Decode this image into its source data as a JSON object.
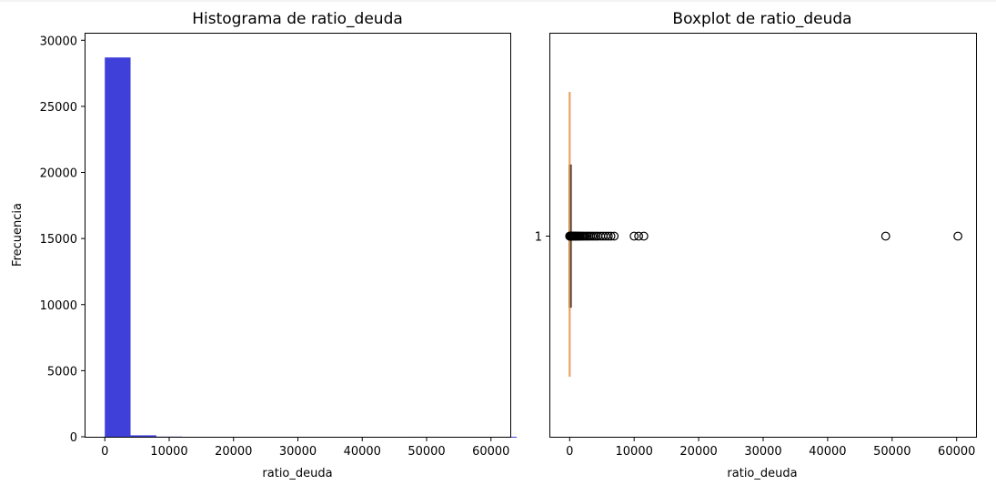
{
  "chart_data": [
    {
      "type": "histogram",
      "title": "Histograma de ratio_deuda",
      "xlabel": "ratio_deuda",
      "ylabel": "Frecuencia",
      "xlim": [
        -3000,
        63000
      ],
      "ylim": [
        0,
        30500
      ],
      "xticks": [
        0,
        10000,
        20000,
        30000,
        40000,
        50000,
        60000
      ],
      "xtick_labels": [
        "0",
        "10000",
        "20000",
        "30000",
        "40000",
        "50000",
        "60000"
      ],
      "yticks": [
        0,
        5000,
        10000,
        15000,
        20000,
        25000,
        30000
      ],
      "ytick_labels": [
        "0",
        "5000",
        "10000",
        "15000",
        "20000",
        "25000",
        "30000"
      ],
      "bar_color": "#3f3fd9",
      "bins": [
        {
          "x0": 0,
          "x1": 4000,
          "count": 28700
        },
        {
          "x0": 4000,
          "x1": 8000,
          "count": 110
        },
        {
          "x0": 8000,
          "x1": 12000,
          "count": 12
        },
        {
          "x0": 12000,
          "x1": 16000,
          "count": 0
        },
        {
          "x0": 16000,
          "x1": 20000,
          "count": 0
        },
        {
          "x0": 20000,
          "x1": 24000,
          "count": 0
        },
        {
          "x0": 24000,
          "x1": 28000,
          "count": 0
        },
        {
          "x0": 28000,
          "x1": 32000,
          "count": 0
        },
        {
          "x0": 32000,
          "x1": 36000,
          "count": 0
        },
        {
          "x0": 36000,
          "x1": 40000,
          "count": 0
        },
        {
          "x0": 40000,
          "x1": 44000,
          "count": 0
        },
        {
          "x0": 44000,
          "x1": 48000,
          "count": 0
        },
        {
          "x0": 48000,
          "x1": 52000,
          "count": 1
        },
        {
          "x0": 52000,
          "x1": 56000,
          "count": 0
        },
        {
          "x0": 56000,
          "x1": 60000,
          "count": 0
        },
        {
          "x0": 60000,
          "x1": 64000,
          "count": 1
        }
      ]
    },
    {
      "type": "boxplot",
      "title": "Boxplot de ratio_deuda",
      "xlabel": "ratio_deuda",
      "xlim": [
        -3000,
        63000
      ],
      "xticks": [
        0,
        10000,
        20000,
        30000,
        40000,
        50000,
        60000
      ],
      "xtick_labels": [
        "0",
        "10000",
        "20000",
        "30000",
        "40000",
        "50000",
        "60000"
      ],
      "category": "1",
      "box_color": "#e8a05c",
      "box": {
        "whisker_low": 0,
        "q1": 0.2,
        "median": 0.4,
        "q3": 0.9,
        "whisker_high": 2.0
      },
      "outliers": [
        5,
        20,
        40,
        60,
        80,
        100,
        130,
        160,
        200,
        250,
        300,
        350,
        420,
        500,
        600,
        700,
        800,
        900,
        1000,
        1150,
        1300,
        1450,
        1600,
        1800,
        2000,
        2200,
        2450,
        2700,
        2950,
        3200,
        3500,
        3800,
        4100,
        4400,
        4800,
        5200,
        5600,
        6000,
        6400,
        6900,
        10000,
        10700,
        11500,
        49000,
        60200
      ]
    }
  ]
}
